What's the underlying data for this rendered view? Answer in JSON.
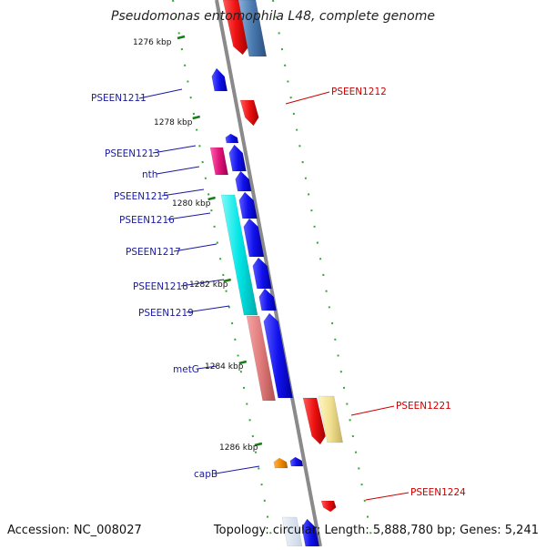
{
  "title": "Pseudomonas entomophila L48, complete genome",
  "footer": {
    "accession": "Accession: NC_008027",
    "topology": "Topology: circular; Length: 5,888,780 bp; Genes: 5,241"
  },
  "ticks": [
    "1276 kbp",
    "1278 kbp",
    "1280 kbp",
    "1282 kbp",
    "1284 kbp",
    "1286 kbp"
  ],
  "gene_labels": [
    "PSEEN1211",
    "PSEEN1212",
    "PSEEN1213",
    "nth",
    "PSEEN1215",
    "PSEEN1216",
    "PSEEN1217",
    "PSEEN1218",
    "PSEEN1219",
    "metG",
    "PSEEN1221",
    "capB",
    "PSEEN1224"
  ],
  "colors": {
    "backbone": "#8a8a8a",
    "tick": "#1a7a1a",
    "label_left": "#1a1aa0",
    "label_right": "#cc0000",
    "forward_gene": "#ee1111",
    "reverse_gene": "#1111ee",
    "cyan_gene": "#00e5e5",
    "salmon_gene": "#e07a7a",
    "pink_gene": "#e0157a",
    "yellow_gene": "#f0e090",
    "steel_gene": "#4a7ab0",
    "orange_gene": "#f08a00"
  }
}
